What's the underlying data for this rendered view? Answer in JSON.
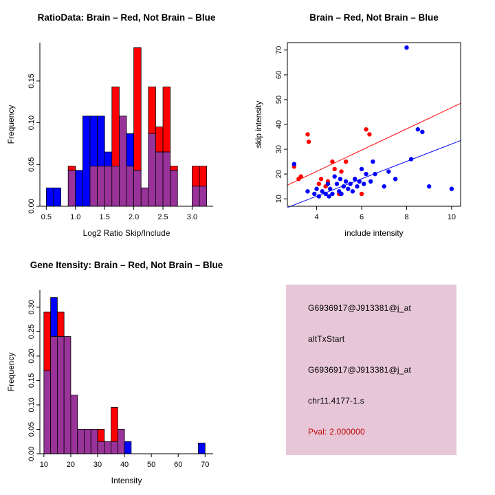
{
  "colors": {
    "red": "#FF0000",
    "blue": "#0000FF",
    "overlap": "#993399",
    "panel_bg": "#E7C6D8",
    "pval_text": "#C00000",
    "axis": "#000000"
  },
  "info_panel": {
    "lines": [
      "G6936917@J913381@j_at",
      "altTxStart",
      "G6936917@J913381@j_at",
      "chr11.4177-1.s"
    ],
    "pval": "Pval: 2.000000"
  },
  "chart_data": [
    {
      "id": "ratio_hist",
      "type": "bar",
      "title": "RatioData: Brain – Red, Not Brain – Blue",
      "xlabel": "Log2 Ratio Skip/Include",
      "ylabel": "Frequency",
      "xlim": [
        0.39,
        3.36
      ],
      "ylim": [
        0,
        0.196
      ],
      "box": false,
      "xticks": [
        {
          "v": 0.5,
          "label": "0.5"
        },
        {
          "v": 1.0,
          "label": "1.0"
        },
        {
          "v": 1.5,
          "label": "1.5"
        },
        {
          "v": 2.0,
          "label": "2.0"
        },
        {
          "v": 2.5,
          "label": "2.5"
        },
        {
          "v": 3.0,
          "label": "3.0"
        }
      ],
      "yticks": [
        {
          "v": 0.0,
          "label": "0.00"
        },
        {
          "v": 0.05,
          "label": "0.05"
        },
        {
          "v": 0.1,
          "label": "0.10"
        },
        {
          "v": 0.15,
          "label": "0.15"
        }
      ],
      "bin_start": 0.5,
      "bin_width": 0.125,
      "red": [
        0,
        0,
        0,
        0.048,
        0,
        0,
        0.048,
        0.048,
        0.048,
        0.143,
        0.108,
        0.048,
        0.19,
        0.022,
        0.143,
        0.095,
        0.143,
        0.048,
        0,
        0,
        0.048,
        0.048
      ],
      "blue": [
        0.022,
        0.022,
        0,
        0.043,
        0.043,
        0.108,
        0.108,
        0.108,
        0.065,
        0.048,
        0.108,
        0.087,
        0.043,
        0.022,
        0.087,
        0.065,
        0.065,
        0.043,
        0,
        0,
        0.024,
        0.024
      ]
    },
    {
      "id": "intensity_scatter",
      "type": "scatter",
      "title": "Brain – Red, Not Brain – Blue",
      "xlabel": "include intensity",
      "ylabel": "skip intensity",
      "xlim": [
        2.7,
        10.4
      ],
      "ylim": [
        7,
        73
      ],
      "box": true,
      "xticks": [
        {
          "v": 4,
          "label": "4"
        },
        {
          "v": 6,
          "label": "6"
        },
        {
          "v": 8,
          "label": "8"
        },
        {
          "v": 10,
          "label": "10"
        }
      ],
      "yticks": [
        {
          "v": 10,
          "label": "10"
        },
        {
          "v": 20,
          "label": "20"
        },
        {
          "v": 30,
          "label": "30"
        },
        {
          "v": 40,
          "label": "40"
        },
        {
          "v": 50,
          "label": "50"
        },
        {
          "v": 60,
          "label": "60"
        },
        {
          "v": 70,
          "label": "70"
        }
      ],
      "series": [
        {
          "name": "Brain",
          "color_key": "red",
          "points": [
            [
              3.0,
              23
            ],
            [
              3.2,
              18
            ],
            [
              3.3,
              19
            ],
            [
              3.6,
              36
            ],
            [
              3.65,
              33
            ],
            [
              4.1,
              16
            ],
            [
              4.2,
              18
            ],
            [
              4.4,
              15
            ],
            [
              4.5,
              17
            ],
            [
              4.7,
              25
            ],
            [
              4.8,
              22
            ],
            [
              5.0,
              12
            ],
            [
              5.1,
              21
            ],
            [
              5.3,
              25
            ],
            [
              6.0,
              12
            ],
            [
              6.2,
              38
            ],
            [
              6.35,
              36
            ]
          ]
        },
        {
          "name": "Not Brain",
          "color_key": "blue",
          "points": [
            [
              3.0,
              24
            ],
            [
              3.6,
              13
            ],
            [
              3.9,
              12
            ],
            [
              4.0,
              14
            ],
            [
              4.1,
              11
            ],
            [
              4.25,
              13
            ],
            [
              4.4,
              12
            ],
            [
              4.5,
              16
            ],
            [
              4.55,
              11
            ],
            [
              4.6,
              14
            ],
            [
              4.7,
              12
            ],
            [
              4.8,
              19
            ],
            [
              4.9,
              16
            ],
            [
              5.0,
              13
            ],
            [
              5.05,
              18
            ],
            [
              5.1,
              12
            ],
            [
              5.2,
              15
            ],
            [
              5.3,
              17
            ],
            [
              5.4,
              14
            ],
            [
              5.5,
              16
            ],
            [
              5.6,
              13
            ],
            [
              5.7,
              18
            ],
            [
              5.8,
              15
            ],
            [
              5.9,
              17
            ],
            [
              6.0,
              22
            ],
            [
              6.1,
              16
            ],
            [
              6.2,
              20
            ],
            [
              6.4,
              17
            ],
            [
              6.5,
              25
            ],
            [
              6.6,
              20
            ],
            [
              7.0,
              15
            ],
            [
              7.2,
              21
            ],
            [
              7.5,
              18
            ],
            [
              8.0,
              71
            ],
            [
              8.2,
              26
            ],
            [
              8.5,
              38
            ],
            [
              8.7,
              37
            ],
            [
              9.0,
              15
            ],
            [
              10.0,
              14
            ]
          ]
        }
      ],
      "lines": [
        {
          "color_key": "red",
          "x1": 2.7,
          "y1": 15.5,
          "x2": 10.4,
          "y2": 48.5
        },
        {
          "color_key": "blue",
          "x1": 2.7,
          "y1": 6.5,
          "x2": 10.4,
          "y2": 33.5
        }
      ]
    },
    {
      "id": "gene_hist",
      "type": "bar",
      "title": "Gene Itensity: Brain – Red, Not Brain – Blue",
      "xlabel": "Intensity",
      "ylabel": "Frequency",
      "xlim": [
        8.5,
        73
      ],
      "ylim": [
        0,
        0.335
      ],
      "box": false,
      "xticks": [
        {
          "v": 10,
          "label": "10"
        },
        {
          "v": 20,
          "label": "20"
        },
        {
          "v": 30,
          "label": "30"
        },
        {
          "v": 40,
          "label": "40"
        },
        {
          "v": 50,
          "label": "50"
        },
        {
          "v": 60,
          "label": "60"
        },
        {
          "v": 70,
          "label": "70"
        }
      ],
      "yticks": [
        {
          "v": 0.0,
          "label": "0.00"
        },
        {
          "v": 0.05,
          "label": "0.05"
        },
        {
          "v": 0.1,
          "label": "0.10"
        },
        {
          "v": 0.15,
          "label": "0.15"
        },
        {
          "v": 0.2,
          "label": "0.20"
        },
        {
          "v": 0.25,
          "label": "0.25"
        },
        {
          "v": 0.3,
          "label": "0.30"
        }
      ],
      "bin_start": 10,
      "bin_width": 2.5,
      "red": [
        0.29,
        0.24,
        0.29,
        0.24,
        0.12,
        0.05,
        0.05,
        0.05,
        0.05,
        0.025,
        0.095,
        0.05,
        0,
        0,
        0,
        0,
        0,
        0,
        0,
        0,
        0,
        0,
        0,
        0
      ],
      "blue": [
        0.17,
        0.32,
        0.24,
        0.24,
        0.12,
        0.05,
        0.05,
        0.05,
        0.025,
        0.025,
        0.025,
        0.05,
        0.025,
        0,
        0,
        0,
        0,
        0,
        0,
        0,
        0,
        0,
        0,
        0.022
      ]
    }
  ]
}
